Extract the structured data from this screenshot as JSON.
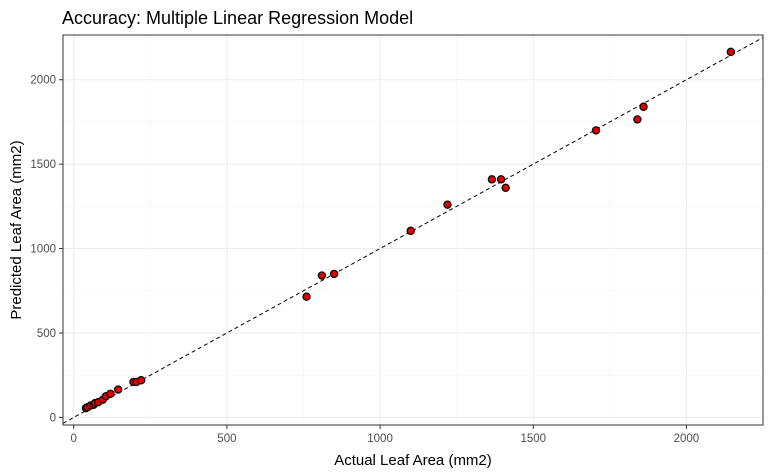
{
  "chart_data": {
    "type": "scatter",
    "title": "Accuracy: Multiple Linear Regression Model",
    "xlabel": "Actual Leaf Area (mm2)",
    "ylabel": "Predicted Leaf Area (mm2)",
    "xlim": [
      -35,
      2250
    ],
    "ylim": [
      -45,
      2265
    ],
    "x_ticks": [
      0,
      500,
      1000,
      1500,
      2000
    ],
    "y_ticks": [
      0,
      500,
      1000,
      1500,
      2000
    ],
    "grid": true,
    "reference_line": {
      "style": "dashed",
      "slope": 1,
      "intercept": 0
    },
    "point_color": "#e00000",
    "point_outline": "#000000",
    "x": [
      40,
      45,
      55,
      65,
      70,
      80,
      95,
      105,
      120,
      145,
      195,
      205,
      220,
      760,
      810,
      850,
      1100,
      1220,
      1365,
      1395,
      1410,
      1705,
      1840,
      1860,
      2145
    ],
    "y": [
      55,
      60,
      70,
      75,
      85,
      90,
      105,
      125,
      140,
      165,
      210,
      210,
      220,
      715,
      840,
      850,
      1105,
      1260,
      1410,
      1410,
      1360,
      1700,
      1765,
      1840,
      2165
    ]
  }
}
